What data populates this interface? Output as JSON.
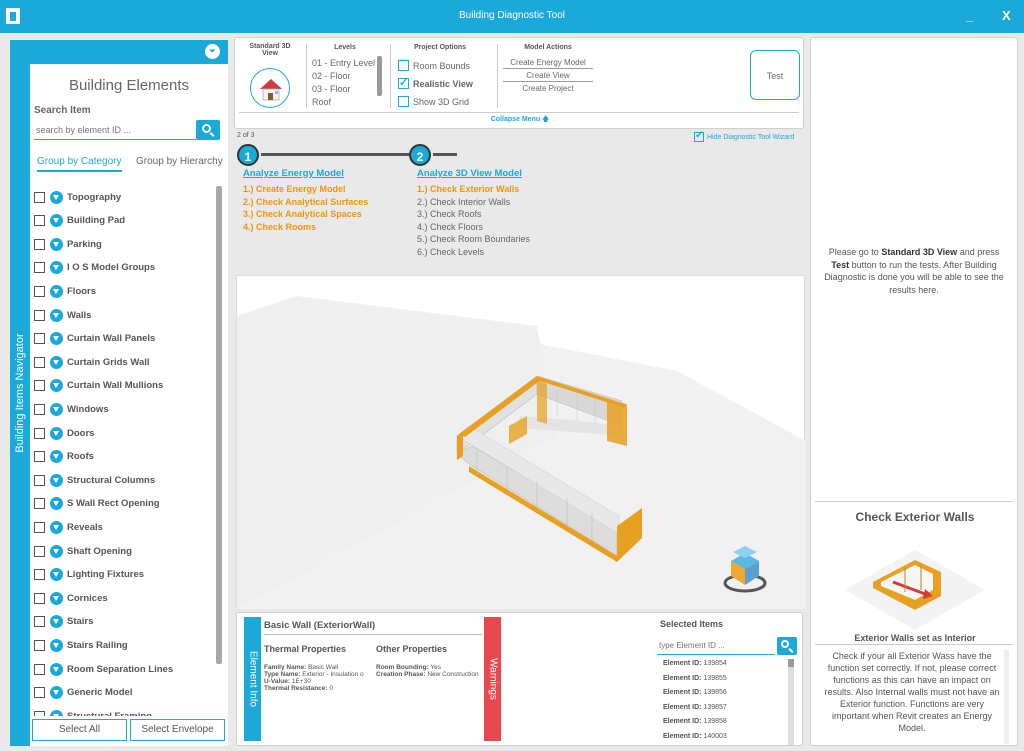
{
  "window": {
    "title": "Building Diagnostic Tool",
    "minimize": "_",
    "close": "X"
  },
  "sidebar": {
    "vertical_label": "Building Items Navigator",
    "title": "Building Elements",
    "search_label": "Search Item",
    "search_placeholder": "search by element ID ...",
    "tabs": [
      "Group by Category",
      "Group by Hierarchy"
    ],
    "categories": [
      "Topography",
      "Building Pad",
      "Parking",
      "I O S Model Groups",
      "Floors",
      "Walls",
      "Curtain Wall Panels",
      "Curtain Grids Wall",
      "Curtain Wall Mullions",
      "Windows",
      "Doors",
      "Roofs",
      "Structural Columns",
      "S Wall Rect Opening",
      "Reveals",
      "Shaft Opening",
      "Lighting Fixtures",
      "Cornices",
      "Stairs",
      "Stairs Railing",
      "Room Separation Lines",
      "Generic Model",
      "Structural Framing"
    ],
    "buttons": {
      "select_all": "Select All",
      "select_envelope": "Select Envelope"
    }
  },
  "toolbar": {
    "view_label": "Standard 3D View",
    "levels_header": "Levels",
    "levels": [
      "01 - Entry Level",
      "02 - Floor",
      "03 - Floor",
      "Roof"
    ],
    "options_header": "Project Options",
    "options": [
      {
        "label": "Room Bounds",
        "checked": false
      },
      {
        "label": "Realistic View",
        "checked": true
      },
      {
        "label": "Show 3D Grid",
        "checked": false
      }
    ],
    "actions_header": "Model Actions",
    "actions": [
      "Create Energy Model",
      "Create View",
      "Create Project"
    ],
    "test_label": "Test",
    "collapse_label": "Collapse Menu 🡅"
  },
  "wizard": {
    "pager": "2 of 3",
    "hide_label": "Hide Diagnostic Tool Wizard",
    "steps": [
      {
        "number": "1",
        "title": "Analyze Energy Model",
        "items": [
          "1.) Create Energy Model",
          "2.) Check Analytical Surfaces",
          "3.) Check Analytical Spaces",
          "4.) Check Rooms"
        ]
      },
      {
        "number": "2",
        "title": "Analyze 3D View Model",
        "items": [
          "1.) Check Exterior Walls",
          "2.) Check Interior Walls",
          "3.) Check Roofs",
          "4.) Check Floors",
          "5.) Check Room Boundaries",
          "6.) Check Levels"
        ]
      }
    ]
  },
  "element_info": {
    "tab_label": "Element Info",
    "warnings_label": "Warnings",
    "name": "Basic Wall (ExteriorWall)",
    "thermal_header": "Thermal Properties",
    "other_header": "Other Properties",
    "thermal": [
      {
        "key": "Family Name:",
        "value": "Basic Wall"
      },
      {
        "key": "Type Name:",
        "value": "Exterior - Insulation o"
      },
      {
        "key": "U-Value:",
        "value": "1E+30"
      },
      {
        "key": "Thermal Resistance:",
        "value": "0"
      }
    ],
    "other": [
      {
        "key": "Room Bounding:",
        "value": "Yes"
      },
      {
        "key": "Creation Phase:",
        "value": "New Construction"
      }
    ]
  },
  "selected": {
    "title": "Selected Items",
    "placeholder": "type Element ID ...",
    "id_label": "Element ID:",
    "ids": [
      "139854",
      "139855",
      "139856",
      "139857",
      "139858",
      "140003"
    ]
  },
  "right_panel": {
    "hint_parts": [
      "Please go to ",
      "Standard 3D View",
      " and press ",
      "Test",
      " button to run the tests. After Building Diagnostic is done you will be able to see the results here."
    ],
    "check_title": "Check Exterior Walls",
    "check_subtitle": "Exterior Walls set as Interior",
    "check_description": "Check if your all Exterior Wass have the function set correctly. If not, please correct functions as this can have an impact on results. Also Internal walls must not have an Exterior function. Functions are very important when Revit creates an Energy Model."
  },
  "colors": {
    "accent": "#1aa9d8",
    "done": "#f0950a",
    "warning": "#e6484f",
    "wall": "#e8a020"
  },
  "icons": [
    "app-icon",
    "filter-icon",
    "search-icon",
    "expand-icon",
    "house-icon",
    "view-cube-icon",
    "collapse-arrow-icon"
  ]
}
